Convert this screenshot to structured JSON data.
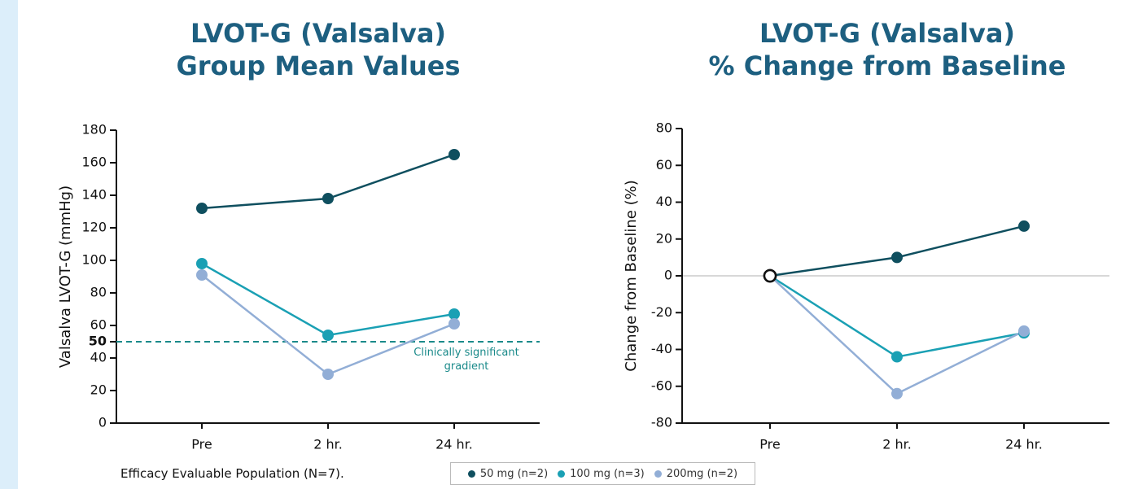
{
  "chart_data": [
    {
      "type": "line",
      "title": "LVOT-G (Valsalva)",
      "subtitle": "Group Mean Values",
      "ylabel": "Valsalva LVOT-G (mmHg)",
      "categories": [
        "Pre",
        "2 hr.",
        "24 hr."
      ],
      "series": [
        {
          "name": "50 mg (n=2)",
          "color": "#0f4f5f",
          "values": [
            132,
            138,
            165
          ]
        },
        {
          "name": "100 mg (n=3)",
          "color": "#1aa0b4",
          "values": [
            98,
            54,
            67
          ]
        },
        {
          "name": "200mg (n=2)",
          "color": "#92aed6",
          "values": [
            91,
            30,
            61
          ]
        }
      ],
      "ylim": [
        0,
        180
      ],
      "yticks": [
        0,
        20,
        40,
        50,
        60,
        80,
        100,
        120,
        140,
        160,
        180
      ],
      "reference_line": {
        "value": 50,
        "label": "Clinically significant gradient",
        "color": "#1a8a8a"
      }
    },
    {
      "type": "line",
      "title": "LVOT-G (Valsalva)",
      "subtitle": "% Change from Baseline",
      "ylabel": "Change from Baseline (%)",
      "categories": [
        "Pre",
        "2 hr.",
        "24 hr."
      ],
      "series": [
        {
          "name": "50 mg (n=2)",
          "color": "#0f4f5f",
          "values": [
            0,
            10,
            27
          ]
        },
        {
          "name": "100 mg (n=3)",
          "color": "#1aa0b4",
          "values": [
            0,
            -44,
            -31
          ]
        },
        {
          "name": "200mg (n=2)",
          "color": "#92aed6",
          "values": [
            0,
            -64,
            -30
          ]
        }
      ],
      "ylim": [
        -80,
        80
      ],
      "yticks": [
        -80,
        -60,
        -40,
        -20,
        0,
        20,
        40,
        60,
        80
      ],
      "zero_line": true,
      "hollow_first_point": true
    }
  ],
  "footnote": "Efficacy Evaluable Population (N=7)."
}
